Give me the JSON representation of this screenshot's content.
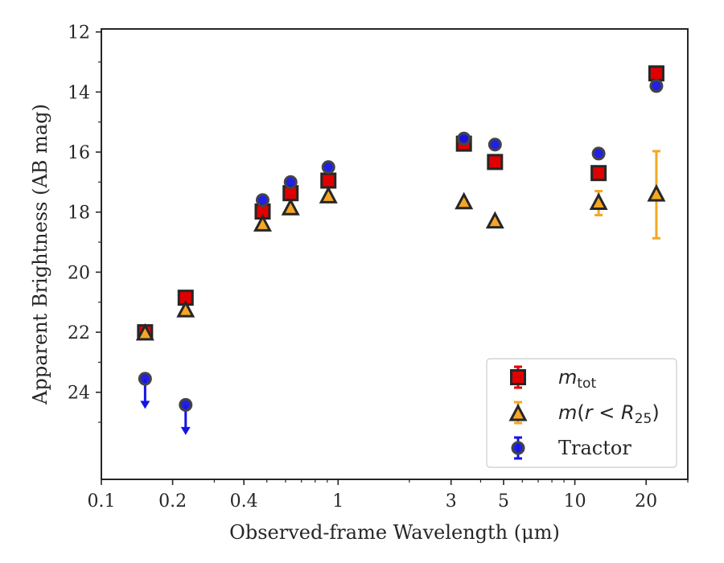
{
  "chart_data": {
    "type": "scatter",
    "title": "",
    "xlabel": "Observed-frame Wavelength (μm)",
    "ylabel": "Apparent Brightness (AB mag)",
    "xscale": "log",
    "xlim": [
      0.1,
      30
    ],
    "ylim": [
      26.9,
      11.9
    ],
    "y_inverted": true,
    "x_ticks": [
      {
        "value": 0.1,
        "label": "0.1"
      },
      {
        "value": 0.2,
        "label": "0.2"
      },
      {
        "value": 0.4,
        "label": "0.4"
      },
      {
        "value": 1,
        "label": "1"
      },
      {
        "value": 3,
        "label": "3"
      },
      {
        "value": 5,
        "label": "5"
      },
      {
        "value": 10,
        "label": "10"
      },
      {
        "value": 20,
        "label": "20"
      }
    ],
    "y_ticks": [
      12,
      14,
      16,
      18,
      20,
      22,
      24
    ],
    "legend_position": "lower-right",
    "series": [
      {
        "name": "m_tot",
        "legend_main": "m",
        "legend_sub": "tot",
        "marker": "square",
        "color": "#e00000",
        "points": [
          {
            "x": 0.153,
            "y": 22.0,
            "err": 0.1
          },
          {
            "x": 0.227,
            "y": 20.85,
            "err": 0.1
          },
          {
            "x": 0.48,
            "y": 17.98,
            "err": 0.1
          },
          {
            "x": 0.63,
            "y": 17.37,
            "err": 0.1
          },
          {
            "x": 0.91,
            "y": 16.95,
            "err": 0.1
          },
          {
            "x": 3.4,
            "y": 15.72,
            "err": 0.1
          },
          {
            "x": 4.6,
            "y": 16.33,
            "err": 0.1
          },
          {
            "x": 12.6,
            "y": 16.7,
            "err": 0.1
          },
          {
            "x": 22.1,
            "y": 13.38,
            "err": 0.1
          }
        ]
      },
      {
        "name": "m(r < R25)",
        "legend_prefix": "m",
        "legend_mid": "(",
        "legend_var": "r",
        "legend_op": " < ",
        "legend_var2": "R",
        "legend_sub": "25",
        "legend_end": ")",
        "marker": "triangle",
        "color": "#f5a623",
        "points": [
          {
            "x": 0.153,
            "y": 22.05,
            "err": 0.05
          },
          {
            "x": 0.227,
            "y": 21.28,
            "err": 0.05
          },
          {
            "x": 0.48,
            "y": 18.42,
            "err": 0.05
          },
          {
            "x": 0.63,
            "y": 17.88,
            "err": 0.05
          },
          {
            "x": 0.91,
            "y": 17.48,
            "err": 0.05
          },
          {
            "x": 3.4,
            "y": 17.68,
            "err": 0.05
          },
          {
            "x": 4.6,
            "y": 18.32,
            "err": 0.05
          },
          {
            "x": 12.6,
            "y": 17.7,
            "err": 0.4
          },
          {
            "x": 22.1,
            "y": 17.42,
            "err": 1.45
          }
        ]
      },
      {
        "name": "Tractor",
        "marker": "circle",
        "color": "#1414e6",
        "points": [
          {
            "x": 0.153,
            "y": 23.55,
            "upper_limit": true
          },
          {
            "x": 0.227,
            "y": 24.42,
            "upper_limit": true
          },
          {
            "x": 0.48,
            "y": 17.6
          },
          {
            "x": 0.63,
            "y": 17.0
          },
          {
            "x": 0.91,
            "y": 16.5
          },
          {
            "x": 3.4,
            "y": 15.55
          },
          {
            "x": 4.6,
            "y": 15.75
          },
          {
            "x": 12.6,
            "y": 16.05
          },
          {
            "x": 22.1,
            "y": 13.8
          }
        ]
      }
    ]
  }
}
